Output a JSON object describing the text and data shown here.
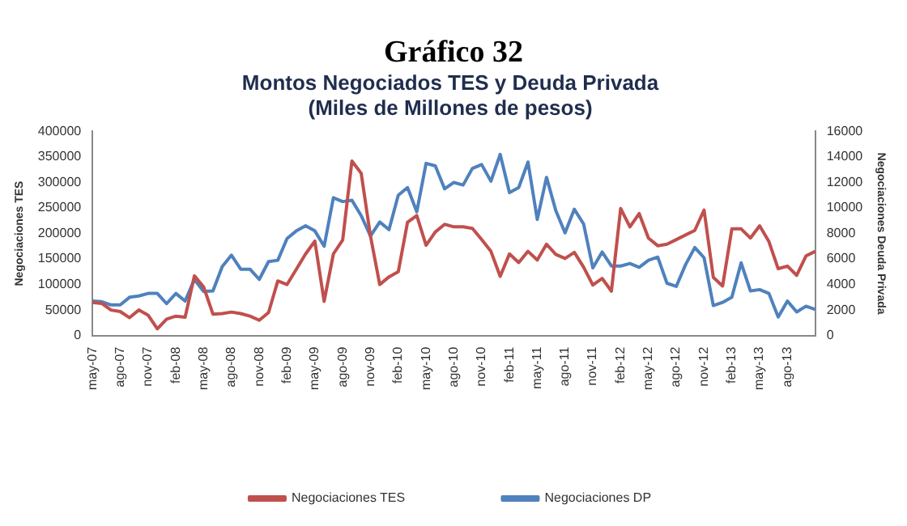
{
  "chart_data": {
    "type": "line",
    "title": "Gráfico 32",
    "subtitle": "Montos Negociados TES y Deuda Privada\n(Miles de Millones de pesos)",
    "ylabel": "Negociaciones TES",
    "y2label": "Negociaciones Deuda Privada",
    "categories": [
      "may-07",
      null,
      null,
      "ago-07",
      null,
      null,
      "nov-07",
      null,
      null,
      "feb-08",
      null,
      null,
      "may-08",
      null,
      null,
      "ago-08",
      null,
      null,
      "nov-08",
      null,
      null,
      "feb-09",
      null,
      null,
      "may-09",
      null,
      null,
      "ago-09",
      null,
      null,
      "nov-09",
      null,
      null,
      "feb-10",
      null,
      null,
      "may-10",
      null,
      null,
      "ago-10",
      null,
      null,
      "nov-10",
      null,
      null,
      "feb-11",
      null,
      null,
      "may-11",
      null,
      null,
      "ago-11",
      null,
      null,
      "nov-11",
      null,
      null,
      "feb-12",
      null,
      null,
      "may-12",
      null,
      null,
      "ago-12",
      null,
      null,
      "nov-12",
      null,
      null,
      "feb-13",
      null,
      null,
      "may-13",
      null,
      null,
      "ago-13",
      null,
      null,
      null
    ],
    "series": [
      {
        "name": "Negociaciones TES",
        "color": "#c0504d",
        "values": [
          65000,
          63000,
          50000,
          47000,
          35000,
          50000,
          40000,
          13000,
          32000,
          38000,
          36000,
          117000,
          95000,
          42000,
          43000,
          46000,
          43000,
          38000,
          30000,
          45000,
          107000,
          100000,
          130000,
          160000,
          185000,
          67000,
          160000,
          187000,
          342000,
          318000,
          195000,
          100000,
          115000,
          125000,
          222000,
          235000,
          177000,
          203000,
          218000,
          213000,
          213000,
          210000,
          188000,
          165000,
          116000,
          160000,
          143000,
          165000,
          148000,
          179000,
          159000,
          151000,
          163000,
          134000,
          99000,
          112000,
          87000,
          249000,
          213000,
          239000,
          191000,
          176000,
          179000,
          188000,
          197000,
          206000,
          246000,
          114000,
          97000,
          209000,
          209000,
          191000,
          215000,
          184000,
          131000,
          136000,
          118000,
          156000,
          165000
        ]
      },
      {
        "name": "Negociaciones DP",
        "color": "#4f81bd",
        "axis": "y2",
        "values": [
          2700,
          2650,
          2400,
          2400,
          3000,
          3100,
          3300,
          3300,
          2500,
          3300,
          2700,
          4400,
          3450,
          3500,
          5400,
          6300,
          5200,
          5200,
          4400,
          5800,
          5900,
          7600,
          8200,
          8600,
          8200,
          7000,
          10800,
          10500,
          10600,
          9400,
          7800,
          8900,
          8300,
          11000,
          11600,
          9700,
          13500,
          13300,
          11500,
          12000,
          11800,
          13100,
          13400,
          12100,
          14200,
          11200,
          11600,
          13600,
          9100,
          12400,
          9800,
          8050,
          9900,
          8750,
          5300,
          6550,
          5450,
          5450,
          5650,
          5350,
          5900,
          6150,
          4100,
          3850,
          5550,
          6900,
          6100,
          2350,
          2600,
          3000,
          5700,
          3500,
          3600,
          3300,
          1450,
          2700,
          1850,
          2300,
          2050
        ]
      }
    ],
    "ylim": [
      0,
      400000
    ],
    "yticks": [
      0,
      50000,
      100000,
      150000,
      200000,
      250000,
      300000,
      350000,
      400000
    ],
    "y2lim": [
      0,
      16000
    ],
    "y2ticks": [
      0,
      2000,
      4000,
      6000,
      8000,
      10000,
      12000,
      14000,
      16000
    ],
    "grid": false,
    "legend": "bottom",
    "marker": "none",
    "line_style": "solid"
  }
}
